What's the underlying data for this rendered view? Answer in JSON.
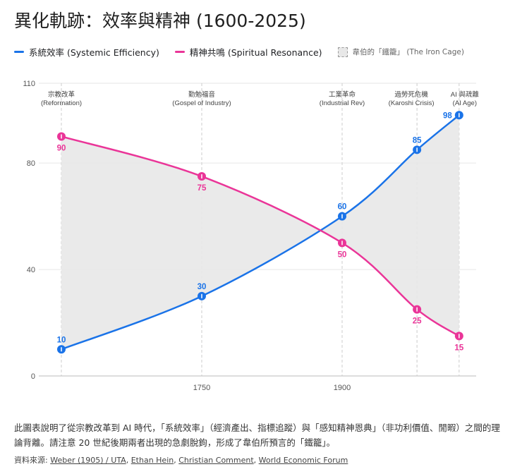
{
  "title": "異化軌跡：效率與精神 (1600-2025)",
  "legend": {
    "efficiency": "系統效率 (Systemic Efficiency)",
    "spirit": "精神共鳴 (Spiritual Resonance)",
    "cage": "韋伯的「鐵籠」 (The Iron Cage)"
  },
  "colors": {
    "efficiency": "#1a73e8",
    "spirit": "#ea3598",
    "cage": "#e8e8e8"
  },
  "chart_data": {
    "type": "line",
    "x": [
      1600,
      1750,
      1900,
      1980,
      2025
    ],
    "series": [
      {
        "name": "系統效率 (Systemic Efficiency)",
        "values": [
          10,
          30,
          60,
          85,
          98
        ]
      },
      {
        "name": "精神共鳴 (Spiritual Resonance)",
        "values": [
          90,
          75,
          50,
          25,
          15
        ]
      }
    ],
    "shaded_region": "between series — 韋伯的「鐵籠」 (The Iron Cage)",
    "xlim": [
      1600,
      2045
    ],
    "ylim": [
      0,
      110
    ],
    "x_ticks": [
      "1750",
      "1900"
    ],
    "y_ticks": [
      "0",
      "40",
      "80",
      "110"
    ],
    "grid": true,
    "legend_position": "top-left",
    "annotations": [
      {
        "x": 1600,
        "line1": "宗教改革",
        "line2": "(Reformation)"
      },
      {
        "x": 1750,
        "line1": "勤勉福音",
        "line2": "(Gospel of Industry)"
      },
      {
        "x": 1900,
        "line1": "工業革命",
        "line2": "(Industrial Rev)"
      },
      {
        "x": 1980,
        "line1": "過勞死危機",
        "line2": "(Karoshi Crisis)"
      },
      {
        "x": 2025,
        "line1": "AI 與疏離",
        "line2": "(AI Age)"
      }
    ]
  },
  "description": "此圖表說明了從宗教改革到 AI 時代，「系統效率」（經濟產出、指標追蹤）與「感知精神恩典」（非功利價值、閒暇）之間的理論背離。請注意 20 世紀後期兩者出現的急劇脫鉤，形成了韋伯所預言的「鐵籠」。",
  "sources": {
    "label": "資料來源:",
    "links": [
      "Weber (1905) / UTA",
      "Ethan Hein",
      "Christian Comment",
      "World Economic Forum"
    ]
  }
}
